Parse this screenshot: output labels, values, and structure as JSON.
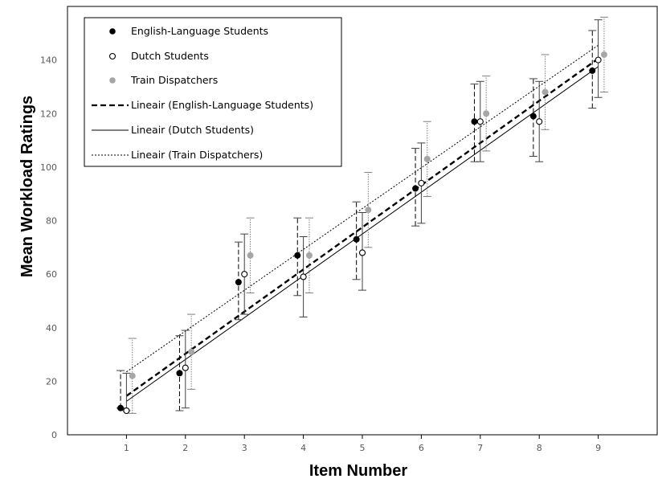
{
  "chart_data": {
    "type": "scatter",
    "xlabel": "Item Number",
    "ylabel": "Mean Workload Ratings",
    "x_ticks": [
      1,
      2,
      3,
      4,
      5,
      6,
      7,
      8,
      9
    ],
    "y_ticks": [
      0,
      20,
      40,
      60,
      80,
      100,
      120,
      140
    ],
    "xlim": [
      0,
      10
    ],
    "ylim": [
      0,
      160
    ],
    "grid": false,
    "legend_position": "top-left",
    "series": [
      {
        "name": "English-Language Students",
        "marker": "filled-circle",
        "color": "#000000",
        "error_bar_style": "dashed",
        "x_offset": -0.1,
        "points": [
          {
            "x": 1,
            "y": 10,
            "err_low": 10,
            "err_high": 24
          },
          {
            "x": 2,
            "y": 23,
            "err_low": 9,
            "err_high": 37
          },
          {
            "x": 3,
            "y": 57,
            "err_low": 43,
            "err_high": 72
          },
          {
            "x": 4,
            "y": 67,
            "err_low": 52,
            "err_high": 81
          },
          {
            "x": 5,
            "y": 73,
            "err_low": 58,
            "err_high": 87
          },
          {
            "x": 6,
            "y": 92,
            "err_low": 78,
            "err_high": 107
          },
          {
            "x": 7,
            "y": 117,
            "err_low": 102,
            "err_high": 131
          },
          {
            "x": 8,
            "y": 119,
            "err_low": 104,
            "err_high": 133
          },
          {
            "x": 9,
            "y": 136,
            "err_low": 122,
            "err_high": 151
          }
        ]
      },
      {
        "name": "Dutch Students",
        "marker": "open-circle",
        "color": "#000000",
        "error_bar_style": "solid",
        "x_offset": 0,
        "points": [
          {
            "x": 1,
            "y": 9,
            "err_low": 9,
            "err_high": 23
          },
          {
            "x": 2,
            "y": 25,
            "err_low": 10,
            "err_high": 39
          },
          {
            "x": 3,
            "y": 60,
            "err_low": 45,
            "err_high": 75
          },
          {
            "x": 4,
            "y": 59,
            "err_low": 44,
            "err_high": 74
          },
          {
            "x": 5,
            "y": 68,
            "err_low": 54,
            "err_high": 83
          },
          {
            "x": 6,
            "y": 94,
            "err_low": 79,
            "err_high": 109
          },
          {
            "x": 7,
            "y": 117,
            "err_low": 102,
            "err_high": 132
          },
          {
            "x": 8,
            "y": 117,
            "err_low": 102,
            "err_high": 132
          },
          {
            "x": 9,
            "y": 140,
            "err_low": 126,
            "err_high": 155
          }
        ]
      },
      {
        "name": "Train Dispatchers",
        "marker": "gray-circle",
        "color": "#a6a6a6",
        "error_bar_style": "dotted",
        "x_offset": 0.1,
        "points": [
          {
            "x": 1,
            "y": 22,
            "err_low": 8,
            "err_high": 36
          },
          {
            "x": 2,
            "y": 31,
            "err_low": 17,
            "err_high": 45
          },
          {
            "x": 3,
            "y": 67,
            "err_low": 53,
            "err_high": 81
          },
          {
            "x": 4,
            "y": 67,
            "err_low": 53,
            "err_high": 81
          },
          {
            "x": 5,
            "y": 84,
            "err_low": 70,
            "err_high": 98
          },
          {
            "x": 6,
            "y": 103,
            "err_low": 89,
            "err_high": 117
          },
          {
            "x": 7,
            "y": 120,
            "err_low": 106,
            "err_high": 134
          },
          {
            "x": 8,
            "y": 128,
            "err_low": 114,
            "err_high": 142
          },
          {
            "x": 9,
            "y": 142,
            "err_low": 128,
            "err_high": 156
          }
        ]
      }
    ],
    "trendlines": [
      {
        "name": "Lineair (English-Language Students)",
        "style": "dashed",
        "color": "#000000",
        "y_at_first": 14.5,
        "y_at_last": 140.5
      },
      {
        "name": "Lineair (Dutch Students)",
        "style": "solid",
        "color": "#000000",
        "y_at_first": 12.5,
        "y_at_last": 137.5
      },
      {
        "name": "Lineair (Train Dispatchers)",
        "style": "dotted",
        "color": "#000000",
        "y_at_first": 23.5,
        "y_at_last": 145.5
      }
    ]
  }
}
